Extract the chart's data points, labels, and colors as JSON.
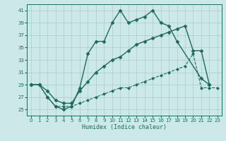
{
  "xlabel": "Humidex (Indice chaleur)",
  "bg_color": "#cce8e8",
  "grid_color": "#aacccc",
  "line_color": "#1e6b5e",
  "xlim": [
    -0.5,
    23.5
  ],
  "ylim": [
    24,
    42
  ],
  "xticks": [
    0,
    1,
    2,
    3,
    4,
    5,
    6,
    7,
    8,
    9,
    10,
    11,
    12,
    13,
    14,
    15,
    16,
    17,
    18,
    19,
    20,
    21,
    22,
    23
  ],
  "yticks": [
    25,
    27,
    29,
    31,
    33,
    35,
    37,
    39,
    41
  ],
  "series": [
    {
      "x": [
        0,
        1,
        2,
        3,
        4,
        5,
        6,
        7,
        8,
        9,
        10,
        11,
        12,
        13,
        14,
        15,
        16,
        17,
        18,
        21,
        22
      ],
      "y": [
        29,
        29,
        27,
        25.5,
        25,
        25.5,
        28.5,
        34,
        36,
        36,
        39,
        41,
        39,
        39.5,
        40,
        41,
        39,
        38.5,
        36,
        30,
        29
      ],
      "style": "-",
      "marker": "D",
      "markersize": 2.5,
      "linewidth": 1.0
    },
    {
      "x": [
        0,
        1,
        2,
        3,
        4,
        5,
        6,
        7,
        8,
        9,
        10,
        11,
        12,
        13,
        14,
        15,
        16,
        17,
        18,
        19,
        20,
        21,
        22
      ],
      "y": [
        29,
        29,
        28,
        26.5,
        26,
        26,
        28,
        29.5,
        31,
        32,
        33,
        33.5,
        34.5,
        35.5,
        36,
        36.5,
        37,
        37.5,
        38,
        38.5,
        34.5,
        34.5,
        29
      ],
      "style": "-",
      "marker": "D",
      "markersize": 2.5,
      "linewidth": 1.0
    },
    {
      "x": [
        0,
        1,
        2,
        3,
        4,
        5,
        6,
        7,
        8,
        9,
        10,
        11,
        12,
        13,
        14,
        15,
        16,
        17,
        18,
        19,
        20,
        21,
        22,
        23
      ],
      "y": [
        29,
        29,
        27,
        25.5,
        25.5,
        25.5,
        26,
        26.5,
        27,
        27.5,
        28,
        28.5,
        28.5,
        29,
        29.5,
        30,
        30.5,
        31,
        31.5,
        32,
        34,
        28.5,
        28.5,
        28.5
      ],
      "style": "--",
      "marker": "D",
      "markersize": 2.0,
      "linewidth": 0.8
    }
  ]
}
